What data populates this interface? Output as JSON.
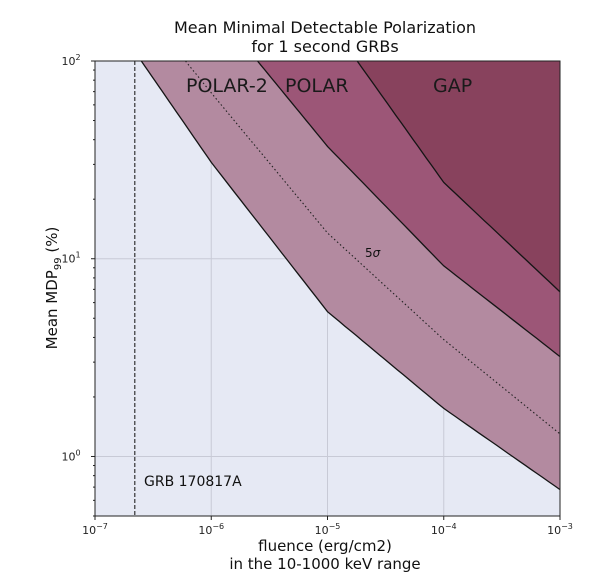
{
  "chart_data": {
    "type": "area",
    "title_line1": "Mean Minimal Detectable Polarization",
    "title_line2": "for 1 second GRBs",
    "xlabel_line1": "fluence (erg/cm2)",
    "xlabel_line2": "in the 10-1000 keV range",
    "ylabel": "Mean MDP",
    "ylabel_sub": "99",
    "ylabel_unit": "(%)",
    "x_scale": "log",
    "y_scale": "log",
    "xlim": [
      1e-07,
      0.001
    ],
    "ylim": [
      0.5,
      100
    ],
    "grid": true,
    "x_ticks": [
      {
        "value": 1e-07,
        "base": "10",
        "exp": "−7"
      },
      {
        "value": 1e-06,
        "base": "10",
        "exp": "−6"
      },
      {
        "value": 1e-05,
        "base": "10",
        "exp": "−5"
      },
      {
        "value": 0.0001,
        "base": "10",
        "exp": "−4"
      },
      {
        "value": 0.001,
        "base": "10",
        "exp": "−3"
      }
    ],
    "y_ticks": [
      {
        "value": 1,
        "base": "10",
        "exp": "0"
      },
      {
        "value": 10,
        "base": "10",
        "exp": "1"
      },
      {
        "value": 100,
        "base": "10",
        "exp": "2"
      }
    ],
    "series": [
      {
        "name": "POLAR-2",
        "x": [
          2.5e-07,
          1e-06,
          1e-05,
          0.0001,
          0.001
        ],
        "y": [
          100,
          30.7,
          5.4,
          1.75,
          0.68
        ],
        "fill": "#b38aa0"
      },
      {
        "name": "POLAR",
        "x": [
          2.5e-06,
          1e-05,
          0.0001,
          0.001
        ],
        "y": [
          100,
          37,
          9.2,
          3.2
        ],
        "fill": "#9c5677"
      },
      {
        "name": "GAP",
        "x": [
          1.8e-05,
          0.0001,
          0.001
        ],
        "y": [
          100,
          24.3,
          6.8
        ],
        "fill": "#88425d"
      }
    ],
    "five_sigma_line": {
      "label": "5",
      "label_symbol": "σ",
      "x": [
        6e-07,
        1e-06,
        1e-05,
        0.0001,
        0.001
      ],
      "y": [
        100,
        69,
        13.5,
        3.9,
        1.3
      ]
    },
    "vertical_line": {
      "label": "GRB 170817A",
      "x": 2.2e-07
    },
    "background_color": "#e6e9f4",
    "grid_color": "#c8cad6"
  }
}
